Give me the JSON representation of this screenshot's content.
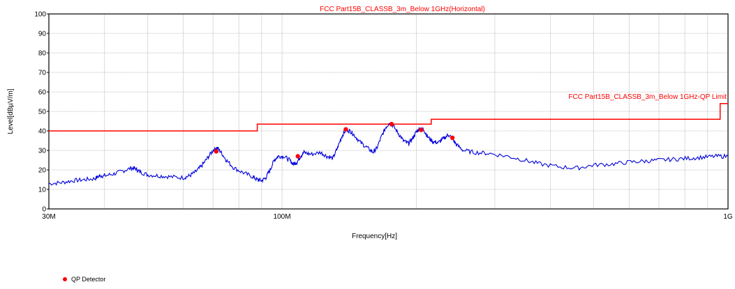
{
  "chart_data": {
    "type": "line",
    "title": "FCC Part15B_CLASSB_3m_Below 1GHz(Horizontal)",
    "xlabel": "Frequency[Hz]",
    "ylabel": "Level[dBµV/m]",
    "x_scale": "log",
    "xlim": [
      30000000,
      1000000000
    ],
    "ylim": [
      0,
      100
    ],
    "grid": true,
    "y_ticks": [
      0,
      10,
      20,
      30,
      40,
      50,
      60,
      70,
      80,
      90,
      100
    ],
    "x_tick_labels": [
      {
        "x": 30000000,
        "label": "30M"
      },
      {
        "x": 100000000,
        "label": "100M"
      },
      {
        "x": 1000000000,
        "label": "1G"
      }
    ],
    "limit_line": {
      "name": "FCC Part15B_CLASSB_3m_Below 1GHz-QP Limit",
      "color": "#ff0000",
      "points": [
        [
          30000000,
          40
        ],
        [
          88000000,
          40
        ],
        [
          88000000,
          43.5
        ],
        [
          216000000,
          43.5
        ],
        [
          216000000,
          46
        ],
        [
          960000000,
          46
        ],
        [
          960000000,
          54
        ],
        [
          1000000000,
          54
        ]
      ]
    },
    "trace": {
      "color": "#0000dd",
      "points": [
        [
          30000000,
          13
        ],
        [
          32000000,
          13.5
        ],
        [
          34000000,
          14.5
        ],
        [
          36000000,
          15
        ],
        [
          38000000,
          15.5
        ],
        [
          39000000,
          17
        ],
        [
          40000000,
          17
        ],
        [
          42000000,
          18
        ],
        [
          44000000,
          19.5
        ],
        [
          46000000,
          21
        ],
        [
          47000000,
          20.5
        ],
        [
          48000000,
          19
        ],
        [
          50000000,
          17.5
        ],
        [
          53000000,
          17
        ],
        [
          56000000,
          16.5
        ],
        [
          60000000,
          16
        ],
        [
          62000000,
          17
        ],
        [
          64000000,
          19
        ],
        [
          66000000,
          22
        ],
        [
          68000000,
          26
        ],
        [
          70000000,
          30
        ],
        [
          71500000,
          31.5
        ],
        [
          73000000,
          29
        ],
        [
          75000000,
          25
        ],
        [
          78000000,
          21
        ],
        [
          82000000,
          18.5
        ],
        [
          86000000,
          16.5
        ],
        [
          88000000,
          15
        ],
        [
          90000000,
          14.5
        ],
        [
          92000000,
          16
        ],
        [
          94000000,
          20
        ],
        [
          96000000,
          25
        ],
        [
          98000000,
          27
        ],
        [
          101000000,
          27
        ],
        [
          104000000,
          25
        ],
        [
          106000000,
          23
        ],
        [
          108000000,
          24
        ],
        [
          110000000,
          27
        ],
        [
          112000000,
          29
        ],
        [
          116000000,
          28
        ],
        [
          122000000,
          29
        ],
        [
          126000000,
          27
        ],
        [
          130000000,
          26
        ],
        [
          133000000,
          31
        ],
        [
          136000000,
          37
        ],
        [
          139000000,
          40.5
        ],
        [
          142000000,
          40
        ],
        [
          145000000,
          38
        ],
        [
          150000000,
          34
        ],
        [
          155000000,
          31.5
        ],
        [
          160000000,
          29
        ],
        [
          163000000,
          31
        ],
        [
          167000000,
          37
        ],
        [
          171000000,
          42
        ],
        [
          174000000,
          44
        ],
        [
          177000000,
          43
        ],
        [
          182000000,
          39
        ],
        [
          187000000,
          35
        ],
        [
          192000000,
          33.5
        ],
        [
          196000000,
          36
        ],
        [
          200000000,
          39.5
        ],
        [
          204000000,
          41.5
        ],
        [
          208000000,
          40.5
        ],
        [
          212000000,
          37
        ],
        [
          218000000,
          34.5
        ],
        [
          224000000,
          34
        ],
        [
          230000000,
          36
        ],
        [
          236000000,
          38
        ],
        [
          240000000,
          36.5
        ],
        [
          246000000,
          33
        ],
        [
          255000000,
          30
        ],
        [
          270000000,
          29
        ],
        [
          290000000,
          28.5
        ],
        [
          320000000,
          27
        ],
        [
          350000000,
          25
        ],
        [
          380000000,
          23
        ],
        [
          420000000,
          21.5
        ],
        [
          460000000,
          21
        ],
        [
          500000000,
          22.5
        ],
        [
          550000000,
          23
        ],
        [
          600000000,
          24
        ],
        [
          650000000,
          24.5
        ],
        [
          700000000,
          25
        ],
        [
          760000000,
          25.5
        ],
        [
          820000000,
          26
        ],
        [
          880000000,
          26.5
        ],
        [
          940000000,
          27
        ],
        [
          1000000000,
          27
        ]
      ]
    },
    "qp_points": {
      "name": "QP Detector",
      "color": "#ff0000",
      "points": [
        [
          71200000,
          29.5
        ],
        [
          108500000,
          27
        ],
        [
          139000000,
          40.8
        ],
        [
          176000000,
          43.5
        ],
        [
          205000000,
          40.5
        ],
        [
          241000000,
          36.5
        ]
      ]
    }
  },
  "legend": {
    "label": "QP Detector"
  }
}
